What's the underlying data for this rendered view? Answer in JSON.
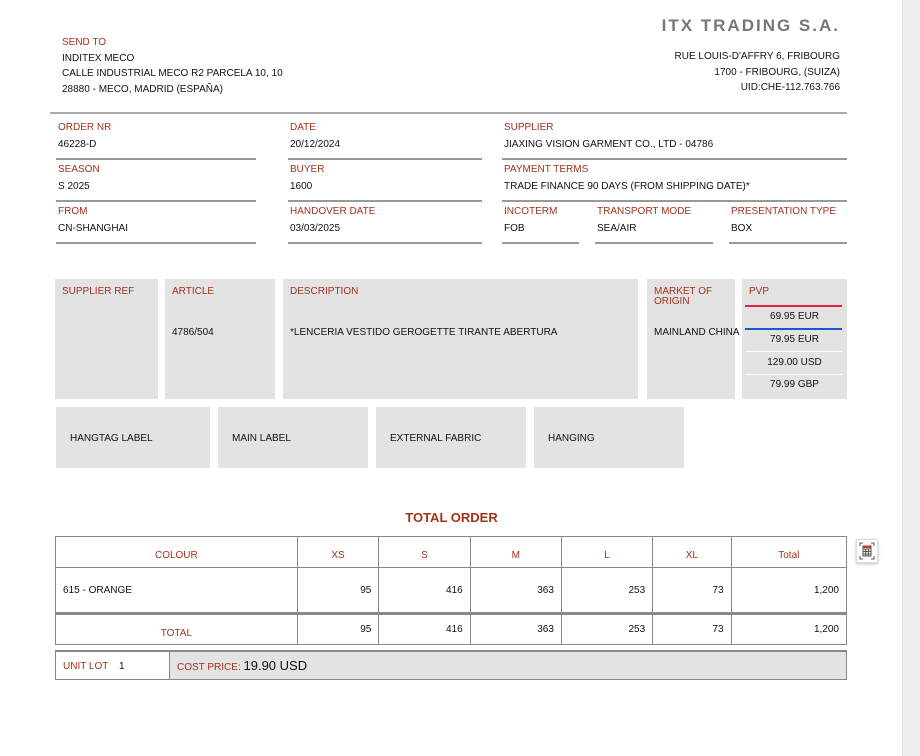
{
  "company": {
    "name": "ITX TRADING S.A.",
    "address1": "RUE LOUIS-D'AFFRY 6, FRIBOURG",
    "address2": "1700 - FRIBOURG,  (SUIZA)",
    "uid": "UID:CHE-112.763.766"
  },
  "send_to": {
    "label": "SEND TO",
    "name": "INDITEX MECO",
    "address1": "CALLE INDUSTRIAL MECO R2 PARCELA 10, 10",
    "address2": "28880 - MECO, MADRID (ESPAÑA)"
  },
  "fields": {
    "order_nr": {
      "label": "ORDER NR",
      "value": "46228-D"
    },
    "date": {
      "label": "DATE",
      "value": "20/12/2024"
    },
    "supplier": {
      "label": "SUPPLIER",
      "value": "JIAXING VISION GARMENT CO., LTD - 04786"
    },
    "season": {
      "label": "SEASON",
      "value": "S 2025"
    },
    "buyer": {
      "label": "BUYER",
      "value": "1600"
    },
    "payment_terms": {
      "label": "PAYMENT TERMS",
      "value": "TRADE FINANCE 90 DAYS (FROM SHIPPING DATE)*"
    },
    "from": {
      "label": "FROM",
      "value": "CN-SHANGHAI"
    },
    "handover_date": {
      "label": "HANDOVER DATE",
      "value": "03/03/2025"
    },
    "incoterm": {
      "label": "INCOTERM",
      "value": "FOB"
    },
    "transport_mode": {
      "label": "TRANSPORT MODE",
      "value": "SEA/AIR"
    },
    "presentation_type": {
      "label": "PRESENTATION TYPE",
      "value": "BOX"
    }
  },
  "article": {
    "supplier_ref_label": "SUPPLIER REF",
    "article_label": "ARTICLE",
    "article_value": "4786/504",
    "description_label": "DESCRIPTION",
    "description_value": "*LENCERIA VESTIDO GEROGETTE TIRANTE ABERTURA",
    "market_label": "MARKET OF ORIGIN",
    "market_value": "MAINLAND CHINA",
    "pvp_label": "PVP",
    "pvp": [
      "69.95 EUR",
      "79.95 EUR",
      "129.00 USD",
      "79.99 GBP"
    ]
  },
  "labels": [
    "HANGTAG LABEL",
    "MAIN LABEL",
    "EXTERNAL FABRIC",
    "HANGING"
  ],
  "total_order": {
    "title": "TOTAL ORDER",
    "headers": [
      "COLOUR",
      "XS",
      "S",
      "M",
      "L",
      "XL",
      "Total"
    ],
    "rows": [
      [
        "615 - ORANGE",
        "95",
        "416",
        "363",
        "253",
        "73",
        "1,200"
      ]
    ],
    "total": [
      "TOTAL",
      "95",
      "416",
      "363",
      "253",
      "73",
      "1,200"
    ],
    "unit_lot_label": "UNIT LOT",
    "unit_lot_value": "1",
    "cost_price_label": "COST PRICE:",
    "cost_price_value": "19.90 USD"
  },
  "colors": {
    "label": "#a3321b",
    "pvp_red": "#e8203a",
    "pvp_blue": "#2255cc",
    "box": "#e3e3e3"
  }
}
